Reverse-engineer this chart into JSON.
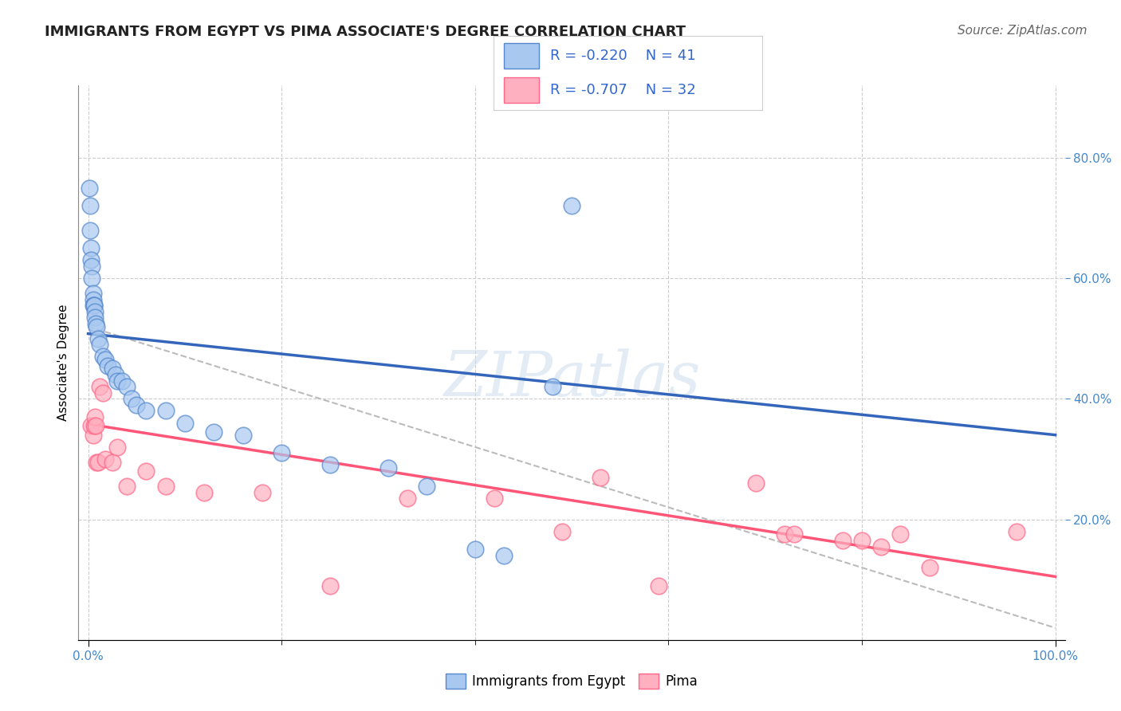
{
  "title": "IMMIGRANTS FROM EGYPT VS PIMA ASSOCIATE'S DEGREE CORRELATION CHART",
  "source_text": "Source: ZipAtlas.com",
  "ylabel": "Associate's Degree",
  "watermark": "ZIPatlas",
  "legend_labels": [
    "Immigrants from Egypt",
    "Pima"
  ],
  "legend_r": [
    "R = -0.220",
    "R = -0.707"
  ],
  "legend_n": [
    "N = 41",
    "N = 32"
  ],
  "blue_color": "#A8C8F0",
  "pink_color": "#FFB0C0",
  "blue_edge_color": "#5588CC",
  "pink_edge_color": "#FF6688",
  "blue_line_color": "#3366BB",
  "pink_line_color": "#FF5577",
  "dashed_line_color": "#BBBBBB",
  "background_color": "#FFFFFF",
  "grid_color": "#CCCCCC",
  "xlim": [
    -0.01,
    1.01
  ],
  "ylim": [
    0.0,
    0.92
  ],
  "xtick_positions": [
    0.0,
    1.0
  ],
  "xticklabels": [
    "0.0%",
    "100.0%"
  ],
  "yticks_right": [
    0.2,
    0.4,
    0.6,
    0.8
  ],
  "yticklabels_right": [
    "20.0%",
    "40.0%",
    "60.0%",
    "80.0%"
  ],
  "yticks_grid": [
    0.0,
    0.2,
    0.4,
    0.6,
    0.8
  ],
  "xticks_grid": [
    0.0,
    0.2,
    0.4,
    0.6,
    0.8,
    1.0
  ],
  "blue_x": [
    0.001,
    0.002,
    0.002,
    0.003,
    0.003,
    0.004,
    0.004,
    0.005,
    0.005,
    0.005,
    0.006,
    0.006,
    0.007,
    0.007,
    0.008,
    0.009,
    0.01,
    0.012,
    0.015,
    0.018,
    0.02,
    0.025,
    0.028,
    0.03,
    0.035,
    0.04,
    0.045,
    0.05,
    0.06,
    0.08,
    0.1,
    0.13,
    0.16,
    0.2,
    0.25,
    0.31,
    0.35,
    0.4,
    0.43,
    0.48,
    0.5
  ],
  "blue_y": [
    0.75,
    0.72,
    0.68,
    0.65,
    0.63,
    0.62,
    0.6,
    0.575,
    0.565,
    0.555,
    0.555,
    0.555,
    0.545,
    0.535,
    0.525,
    0.52,
    0.5,
    0.49,
    0.47,
    0.465,
    0.455,
    0.45,
    0.44,
    0.43,
    0.43,
    0.42,
    0.4,
    0.39,
    0.38,
    0.38,
    0.36,
    0.345,
    0.34,
    0.31,
    0.29,
    0.285,
    0.255,
    0.15,
    0.14,
    0.42,
    0.72
  ],
  "pink_x": [
    0.003,
    0.005,
    0.006,
    0.007,
    0.008,
    0.009,
    0.01,
    0.012,
    0.015,
    0.018,
    0.025,
    0.03,
    0.04,
    0.06,
    0.08,
    0.12,
    0.18,
    0.25,
    0.33,
    0.42,
    0.49,
    0.53,
    0.59,
    0.69,
    0.72,
    0.73,
    0.78,
    0.8,
    0.82,
    0.84,
    0.87,
    0.96
  ],
  "pink_y": [
    0.355,
    0.34,
    0.355,
    0.37,
    0.355,
    0.295,
    0.295,
    0.42,
    0.41,
    0.3,
    0.295,
    0.32,
    0.255,
    0.28,
    0.255,
    0.245,
    0.245,
    0.09,
    0.235,
    0.235,
    0.18,
    0.27,
    0.09,
    0.26,
    0.175,
    0.175,
    0.165,
    0.165,
    0.155,
    0.175,
    0.12,
    0.18
  ],
  "blue_trend_x": [
    0.0,
    1.0
  ],
  "blue_trend_y": [
    0.508,
    0.34
  ],
  "pink_trend_x": [
    0.0,
    1.0
  ],
  "pink_trend_y": [
    0.358,
    0.105
  ],
  "dashed_trend_x": [
    0.0,
    1.0
  ],
  "dashed_trend_y": [
    0.52,
    0.02
  ],
  "title_fontsize": 13,
  "axis_label_fontsize": 11,
  "tick_fontsize": 11,
  "legend_fontsize": 13,
  "watermark_fontsize": 56,
  "source_fontsize": 11,
  "right_tick_color": "#4488CC"
}
